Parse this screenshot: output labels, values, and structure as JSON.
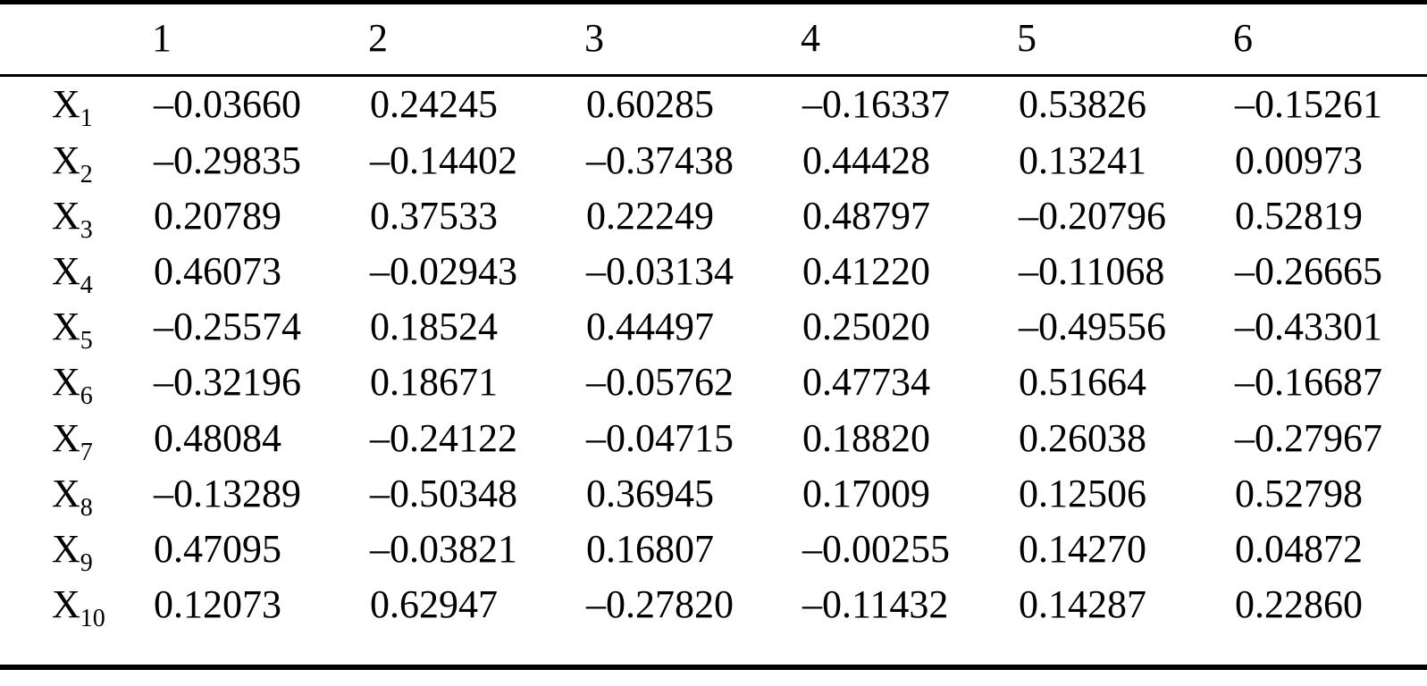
{
  "table": {
    "column_headers": [
      "1",
      "2",
      "3",
      "4",
      "5",
      "6"
    ],
    "row_label_base": "X",
    "rows": [
      {
        "label": "X",
        "sub": "1",
        "values": [
          "–0.03660",
          "0.24245",
          "0.60285",
          "–0.16337",
          "0.53826",
          "–0.15261"
        ]
      },
      {
        "label": "X",
        "sub": "2",
        "values": [
          "–0.29835",
          "–0.14402",
          "–0.37438",
          "0.44428",
          "0.13241",
          "0.00973"
        ]
      },
      {
        "label": "X",
        "sub": "3",
        "values": [
          "0.20789",
          "0.37533",
          "0.22249",
          "0.48797",
          "–0.20796",
          "0.52819"
        ]
      },
      {
        "label": "X",
        "sub": "4",
        "values": [
          "0.46073",
          "–0.02943",
          "–0.03134",
          "0.41220",
          "–0.11068",
          "–0.26665"
        ]
      },
      {
        "label": "X",
        "sub": "5",
        "values": [
          "–0.25574",
          "0.18524",
          "0.44497",
          "0.25020",
          "–0.49556",
          "–0.43301"
        ]
      },
      {
        "label": "X",
        "sub": "6",
        "values": [
          "–0.32196",
          "0.18671",
          "–0.05762",
          "0.47734",
          "0.51664",
          "–0.16687"
        ]
      },
      {
        "label": "X",
        "sub": "7",
        "values": [
          "0.48084",
          "–0.24122",
          "–0.04715",
          "0.18820",
          "0.26038",
          "–0.27967"
        ]
      },
      {
        "label": "X",
        "sub": "8",
        "values": [
          "–0.13289",
          "–0.50348",
          "0.36945",
          "0.17009",
          "0.12506",
          "0.52798"
        ]
      },
      {
        "label": "X",
        "sub": "9",
        "values": [
          "0.47095",
          "–0.03821",
          "0.16807",
          "–0.00255",
          "0.14270",
          "0.04872"
        ]
      },
      {
        "label": "X",
        "sub": "10",
        "values": [
          "0.12073",
          "0.62947",
          "–0.27820",
          "–0.11432",
          "0.14287",
          "0.22860"
        ]
      }
    ],
    "colors": {
      "text": "#000000",
      "background": "#ffffff",
      "rule": "#000000"
    }
  }
}
